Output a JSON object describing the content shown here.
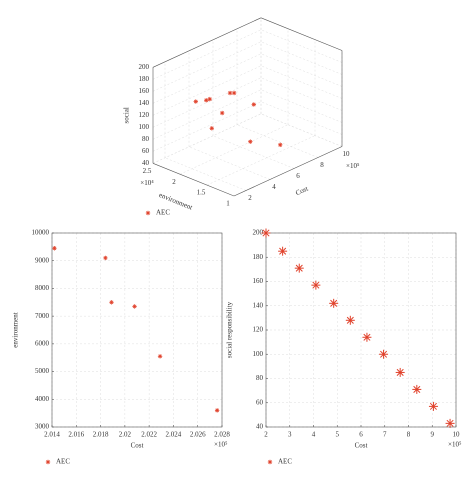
{
  "chart_data": [
    {
      "type": "scatter3d",
      "xlabel": "Cost",
      "ylabel": "environment",
      "zlabel": "social",
      "x_exponent": "×10⁵",
      "y_exponent": "×10⁴",
      "xlim": [
        1,
        10
      ],
      "xticks": [
        2,
        4,
        6,
        8,
        10
      ],
      "ylim": [
        1,
        2.5
      ],
      "yticks": [
        1,
        1.5,
        2,
        2.5
      ],
      "zlim": [
        40,
        200
      ],
      "zticks": [
        40,
        60,
        80,
        100,
        120,
        140,
        160,
        180,
        200
      ],
      "grid": true,
      "series": [
        {
          "name": "AEC",
          "color": "#e0402a",
          "x": [
            1.1,
            1.34,
            1.59,
            3.55,
            3.71,
            2.76,
            5.98,
            3.2,
            5.15,
            6.88
          ],
          "y": [
            1.73,
            1.59,
            1.58,
            1.64,
            1.6,
            1.61,
            1.74,
            1.9,
            1.62,
            1.45
          ],
          "z": [
            170,
            175,
            175,
            165,
            165,
            140,
            120,
            100,
            70,
            55
          ]
        }
      ]
    },
    {
      "type": "scatter",
      "xlabel": "Cost",
      "ylabel": "environment",
      "x_exponent": "×10⁵",
      "xlim": [
        2.014,
        2.028
      ],
      "xticks": [
        2.014,
        2.016,
        2.018,
        2.02,
        2.022,
        2.024,
        2.026,
        2.028
      ],
      "ylim": [
        3000,
        10000
      ],
      "yticks": [
        3000,
        4000,
        5000,
        6000,
        7000,
        8000,
        9000,
        10000
      ],
      "grid": true,
      "x": [
        2.0142,
        2.0184,
        2.0189,
        2.0208,
        2.0229,
        2.0276
      ],
      "series": [
        {
          "name": "AEC",
          "color": "#e0402a",
          "values": [
            9450,
            9100,
            7500,
            7350,
            5550,
            3600
          ]
        }
      ]
    },
    {
      "type": "scatter",
      "xlabel": "Cost",
      "ylabel": "social responsibility",
      "x_exponent": "×10⁵",
      "xlim": [
        2,
        10
      ],
      "xticks": [
        2,
        3,
        4,
        5,
        6,
        7,
        8,
        9,
        10
      ],
      "ylim": [
        40,
        200
      ],
      "yticks": [
        40,
        60,
        80,
        100,
        120,
        140,
        160,
        180,
        200
      ],
      "grid": true,
      "x": [
        2,
        2.7,
        3.4,
        4.1,
        4.85,
        5.55,
        6.25,
        6.95,
        7.65,
        8.35,
        9.05,
        9.75
      ],
      "series": [
        {
          "name": "AEC",
          "color": "#e0402a",
          "values": [
            200,
            185,
            171,
            157,
            142,
            128,
            114,
            100,
            85,
            71,
            57,
            43
          ]
        }
      ]
    }
  ]
}
